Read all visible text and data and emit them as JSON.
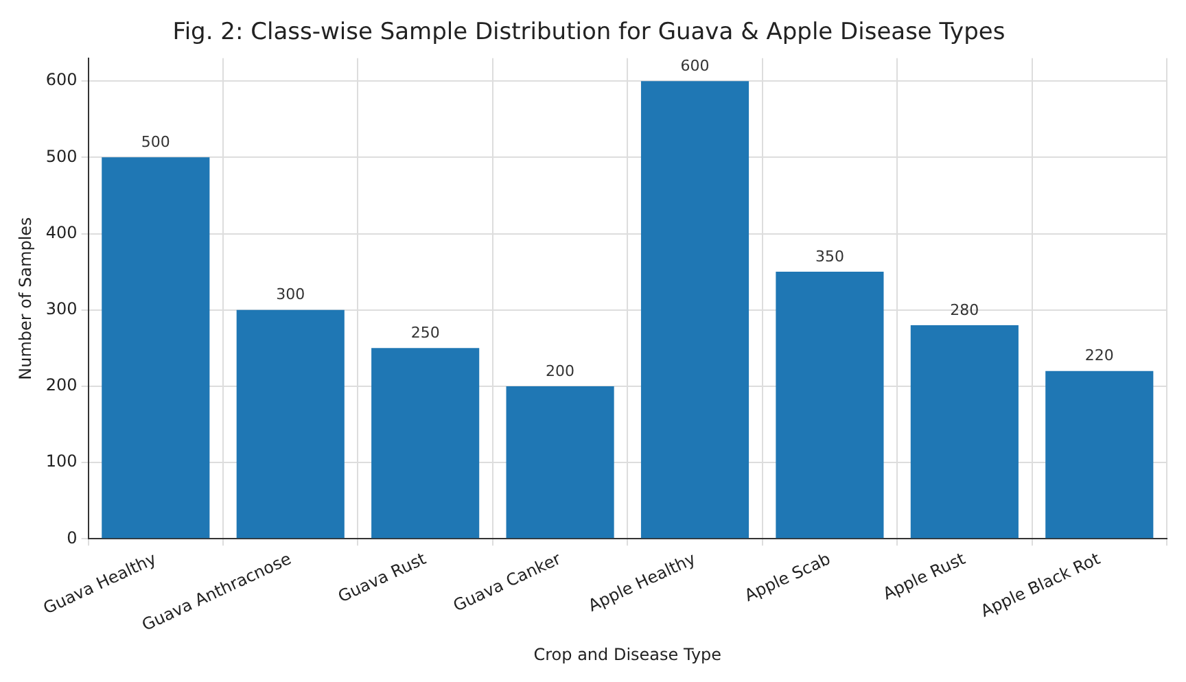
{
  "chart_data": {
    "type": "bar",
    "title": "Fig. 2: Class-wise Sample Distribution for Guava & Apple Disease Types",
    "xlabel": "Crop and Disease Type",
    "ylabel": "Number of Samples",
    "categories": [
      "Guava Healthy",
      "Guava Anthracnose",
      "Guava Rust",
      "Guava Canker",
      "Apple Healthy",
      "Apple Scab",
      "Apple Rust",
      "Apple Black Rot"
    ],
    "values": [
      500,
      300,
      250,
      200,
      600,
      350,
      280,
      220
    ],
    "color": "#1f77b4",
    "ylim": [
      0,
      630
    ],
    "yticks": [
      0,
      100,
      200,
      300,
      400,
      500,
      600
    ],
    "grid": true,
    "data_labels": true
  }
}
